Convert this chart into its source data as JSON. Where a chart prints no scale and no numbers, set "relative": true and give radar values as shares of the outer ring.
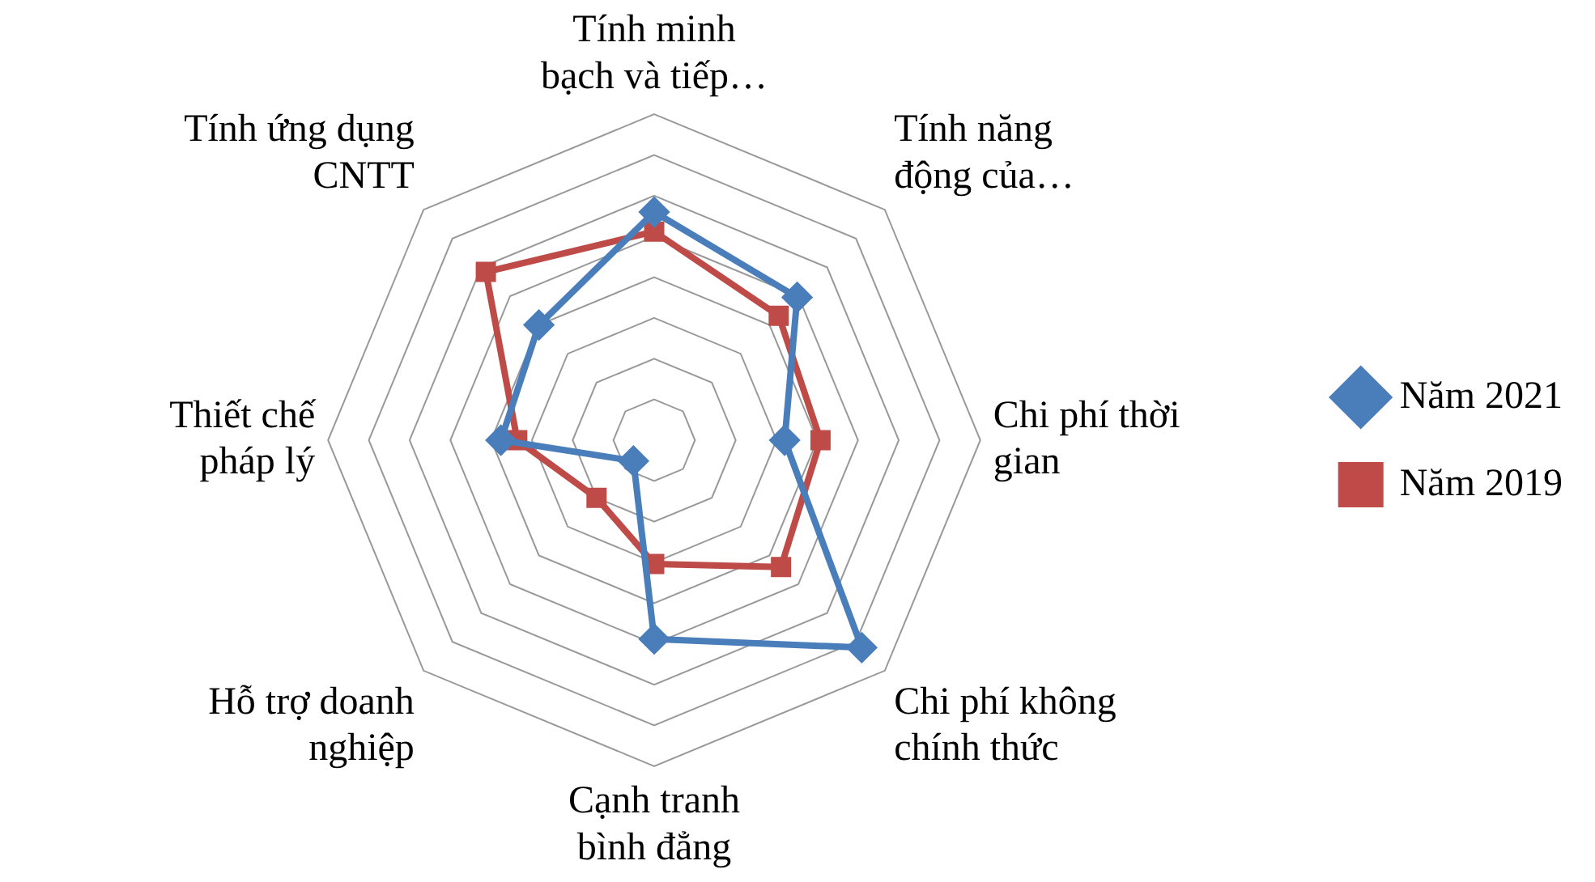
{
  "chart_data": {
    "type": "radar",
    "relative": true,
    "legend": "right",
    "grid": true,
    "categories": [
      "Tính minh bạch và tiếp…",
      "Tính năng động của…",
      "Chi phí thời gian",
      "Chi phí không chính thức",
      "Cạnh tranh bình đẳng",
      "Hỗ trợ doanh nghiệp",
      "Thiết chế pháp lý",
      "Tính ứng dụng CNTT"
    ],
    "series": [
      {
        "name": "Năm 2021",
        "color": "#4a7ebb",
        "marker": "diamond",
        "values": [
          0.7,
          0.62,
          0.4,
          0.9,
          0.61,
          0.09,
          0.47,
          0.5
        ]
      },
      {
        "name": "Năm 2019",
        "color": "#be4b48",
        "marker": "square",
        "values": [
          0.64,
          0.54,
          0.51,
          0.55,
          0.38,
          0.25,
          0.42,
          0.73
        ]
      }
    ]
  }
}
